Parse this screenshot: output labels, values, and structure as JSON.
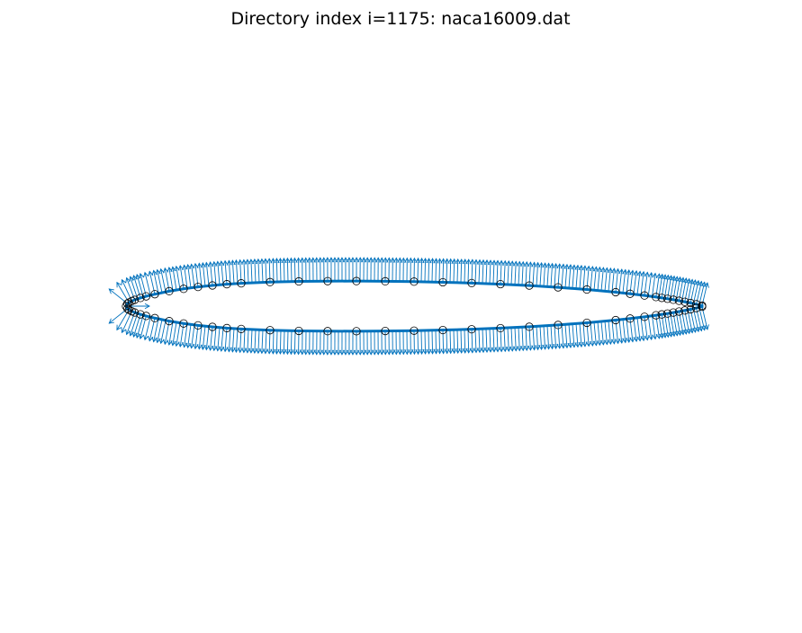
{
  "figure": {
    "title": "Directory index i=1175: naca16009.dat"
  },
  "chart_data": {
    "type": "scatter",
    "title": "Directory index i=1175: naca16009.dat",
    "subtype": "airfoil outline with surface normal vectors (quiver)",
    "airfoil": "naca16009",
    "thickness_ratio": 0.09,
    "xlim": [
      -0.02,
      1.02
    ],
    "axes_visible": false,
    "grid": false,
    "legend": "none",
    "colors": {
      "outline": "#0072BD",
      "normals": "#0072BD",
      "markers_edge": "#000000"
    },
    "surface_points": {
      "upper": {
        "x": [
          1.0,
          0.99,
          0.98,
          0.97,
          0.96,
          0.95,
          0.94,
          0.93,
          0.92,
          0.9,
          0.875,
          0.85,
          0.8,
          0.75,
          0.7,
          0.65,
          0.6,
          0.55,
          0.5,
          0.45,
          0.4,
          0.35,
          0.3,
          0.25,
          0.2,
          0.175,
          0.15,
          0.125,
          0.1,
          0.075,
          0.05,
          0.035,
          0.025,
          0.015,
          0.01,
          0.005,
          0.0025,
          0.0
        ],
        "y": [
          0.00095,
          0.00337,
          0.00563,
          0.00771,
          0.00965,
          0.01146,
          0.01317,
          0.01478,
          0.0163,
          0.0191,
          0.0222,
          0.025,
          0.0298,
          0.0337,
          0.0369,
          0.0394,
          0.0414,
          0.0428,
          0.0439,
          0.0445,
          0.0449,
          0.0448,
          0.0443,
          0.0431,
          0.0409,
          0.0393,
          0.0371,
          0.0344,
          0.031,
          0.0268,
          0.0214,
          0.0176,
          0.0147,
          0.0113,
          0.0092,
          0.0065,
          0.0046,
          0.0
        ]
      },
      "lower": {
        "x": [
          0.0025,
          0.005,
          0.01,
          0.015,
          0.025,
          0.035,
          0.05,
          0.075,
          0.1,
          0.125,
          0.15,
          0.175,
          0.2,
          0.25,
          0.3,
          0.35,
          0.4,
          0.45,
          0.5,
          0.55,
          0.6,
          0.65,
          0.7,
          0.75,
          0.8,
          0.85,
          0.875,
          0.9,
          0.92,
          0.93,
          0.94,
          0.95,
          0.96,
          0.97,
          0.98,
          0.99,
          1.0
        ],
        "y": [
          -0.0046,
          -0.0065,
          -0.0092,
          -0.0113,
          -0.0147,
          -0.0176,
          -0.0214,
          -0.0268,
          -0.031,
          -0.0344,
          -0.0371,
          -0.0393,
          -0.0409,
          -0.0431,
          -0.0443,
          -0.0448,
          -0.0449,
          -0.0445,
          -0.0439,
          -0.0428,
          -0.0414,
          -0.0394,
          -0.0369,
          -0.0337,
          -0.0298,
          -0.025,
          -0.0222,
          -0.0191,
          -0.0163,
          -0.01478,
          -0.01317,
          -0.01146,
          -0.00965,
          -0.00771,
          -0.00563,
          -0.00337,
          -0.00095
        ]
      }
    }
  }
}
